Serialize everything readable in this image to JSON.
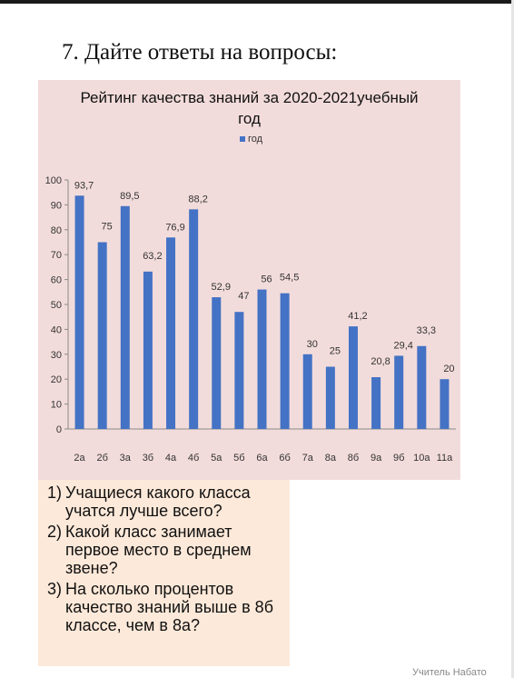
{
  "heading": "7. Дайте ответы на вопросы:",
  "chart_data": {
    "type": "bar",
    "title_line1": "Рейтинг качества знаний за 2020-2021учебный",
    "title_line2": "год",
    "legend": [
      "год"
    ],
    "legend_position": "top",
    "categories": [
      "2а",
      "2б",
      "3а",
      "3б",
      "4а",
      "4б",
      "5а",
      "5б",
      "6а",
      "6б",
      "7а",
      "8а",
      "8б",
      "9а",
      "9б",
      "10а",
      "11а"
    ],
    "series": [
      {
        "name": "год",
        "values": [
          93.7,
          75,
          89.5,
          63.2,
          76.9,
          88.2,
          52.9,
          47,
          56,
          54.5,
          30,
          25,
          41.2,
          20.8,
          29.4,
          33.3,
          20
        ],
        "labels": [
          "93,7",
          "75",
          "89,5",
          "63,2",
          "76,9",
          "88,2",
          "52,9",
          "47",
          "56",
          "54,5",
          "30",
          "25",
          "41,2",
          "20,8",
          "29,4",
          "33,3",
          "20"
        ],
        "color": "#4472c4"
      }
    ],
    "ylim": [
      0,
      100
    ],
    "yticks": [
      0,
      10,
      20,
      30,
      40,
      50,
      60,
      70,
      80,
      90,
      100
    ],
    "grid": false,
    "xlabel": "",
    "ylabel": ""
  },
  "questions": [
    {
      "num": "1)",
      "text": "Учащиеся какого класса учатся лучше всего?"
    },
    {
      "num": "2)",
      "text": "Какой класс занимает первое место в среднем звене?"
    },
    {
      "num": "3)",
      "text": "На сколько процентов качество знаний выше в 8б классе, чем в 8а?"
    }
  ],
  "footer": "Учитель Набато"
}
